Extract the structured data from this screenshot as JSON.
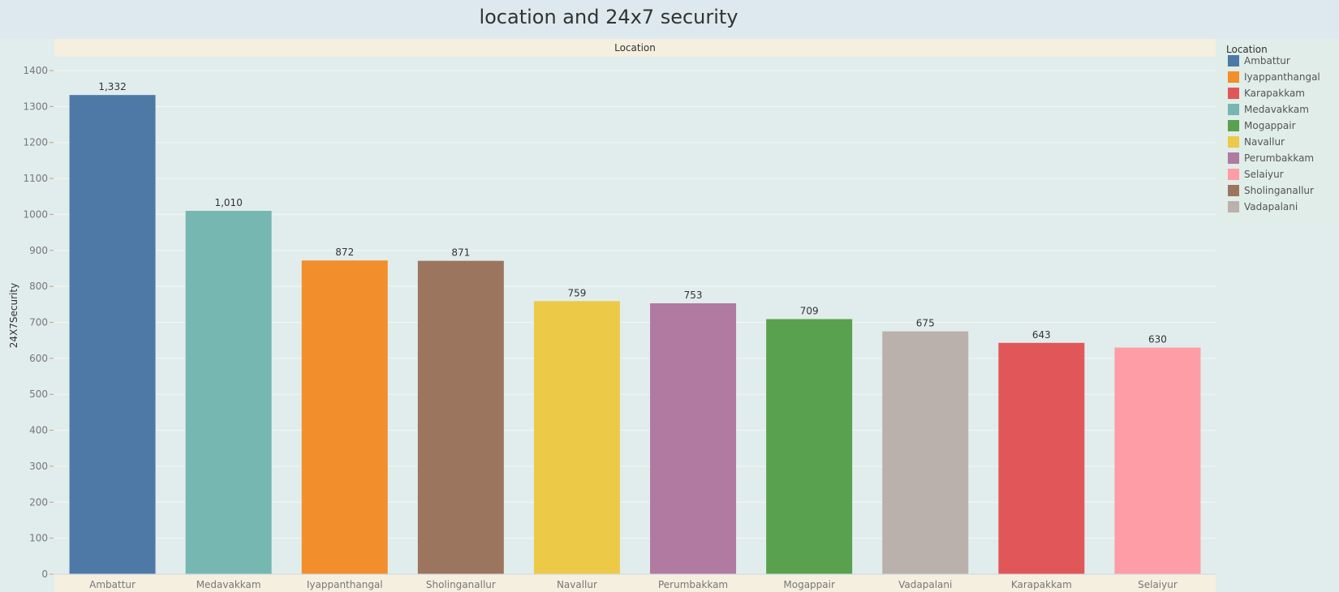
{
  "title": "location and 24x7 security",
  "facet_header": "Location",
  "legend": {
    "title": "Location",
    "items": [
      {
        "label": "Ambattur",
        "color": "#4e79a7"
      },
      {
        "label": "Iyappanthangal",
        "color": "#f28e2b"
      },
      {
        "label": "Karapakkam",
        "color": "#e15759"
      },
      {
        "label": "Medavakkam",
        "color": "#76b7b2"
      },
      {
        "label": "Mogappair",
        "color": "#59a14f"
      },
      {
        "label": "Navallur",
        "color": "#edc948"
      },
      {
        "label": "Perumbakkam",
        "color": "#b07aa1"
      },
      {
        "label": "Selaiyur",
        "color": "#ff9da7"
      },
      {
        "label": "Sholinganallur",
        "color": "#9c755f"
      },
      {
        "label": "Vadapalani",
        "color": "#bab0ac"
      }
    ]
  },
  "chart_data": {
    "type": "bar",
    "title": "location and 24x7 security",
    "xlabel": "",
    "ylabel": "24X7Security",
    "ylim": [
      0,
      1400
    ],
    "yticks": [
      0,
      100,
      200,
      300,
      400,
      500,
      600,
      700,
      800,
      900,
      1000,
      1100,
      1200,
      1300,
      1400
    ],
    "categories": [
      "Ambattur",
      "Medavakkam",
      "Iyappanthangal",
      "Sholinganallur",
      "Navallur",
      "Perumbakkam",
      "Mogappair",
      "Vadapalani",
      "Karapakkam",
      "Selaiyur"
    ],
    "values": [
      1332,
      1010,
      872,
      871,
      759,
      753,
      709,
      675,
      643,
      630
    ],
    "value_labels": [
      "1,332",
      "1,010",
      "872",
      "871",
      "759",
      "753",
      "709",
      "675",
      "643",
      "630"
    ],
    "colors": [
      "#4e79a7",
      "#76b7b2",
      "#f28e2b",
      "#9c755f",
      "#edc948",
      "#b07aa1",
      "#59a14f",
      "#bab0ac",
      "#e15759",
      "#ff9da7"
    ],
    "grid": true,
    "legend_position": "right"
  }
}
